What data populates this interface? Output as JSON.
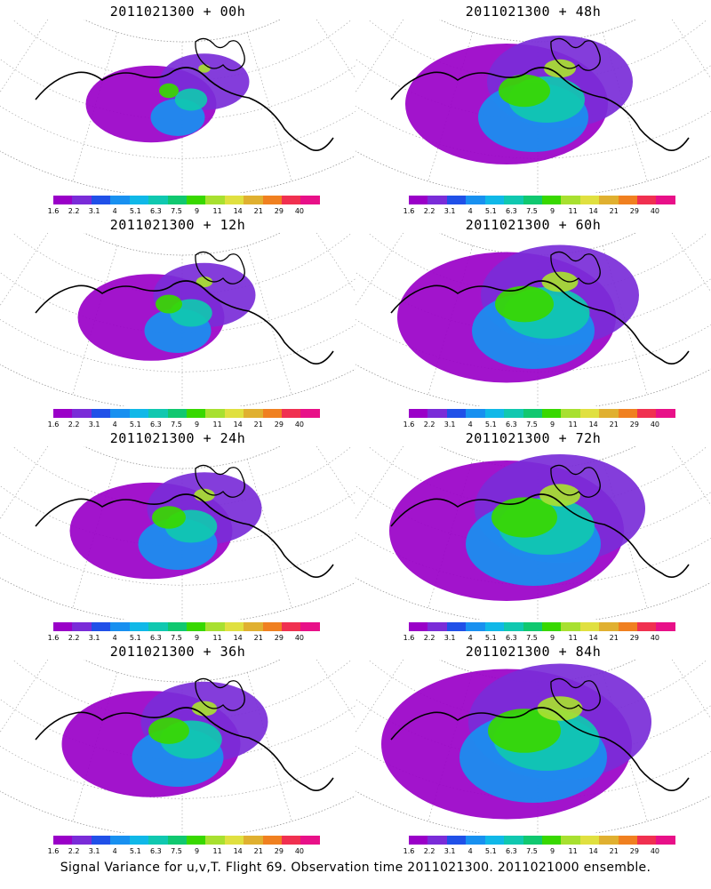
{
  "caption": "Signal Variance for u,v,T. Flight 69. Observation time 2011021300. 2011021000 ensemble.",
  "colorbar": {
    "labels": [
      "1.6",
      "2.2",
      "3.1",
      "4",
      "5.1",
      "6.3",
      "7.5",
      "9",
      "11",
      "14",
      "21",
      "29",
      "40"
    ],
    "colors": [
      "#9a00c8",
      "#7a2cd8",
      "#2050e8",
      "#1890f0",
      "#10b8e8",
      "#10c8b0",
      "#10c870",
      "#38d800",
      "#a8e030",
      "#e0e040",
      "#e0b030",
      "#f08020",
      "#f03050",
      "#e81088"
    ]
  },
  "panels": [
    {
      "title": "2011021300 + 00h",
      "intensity": 0.15
    },
    {
      "title": "2011021300 + 48h",
      "intensity": 0.6
    },
    {
      "title": "2011021300 + 12h",
      "intensity": 0.25
    },
    {
      "title": "2011021300 + 60h",
      "intensity": 0.7
    },
    {
      "title": "2011021300 + 24h",
      "intensity": 0.35
    },
    {
      "title": "2011021300 + 72h",
      "intensity": 0.8
    },
    {
      "title": "2011021300 + 36h",
      "intensity": 0.45
    },
    {
      "title": "2011021300 + 84h",
      "intensity": 0.9
    }
  ]
}
